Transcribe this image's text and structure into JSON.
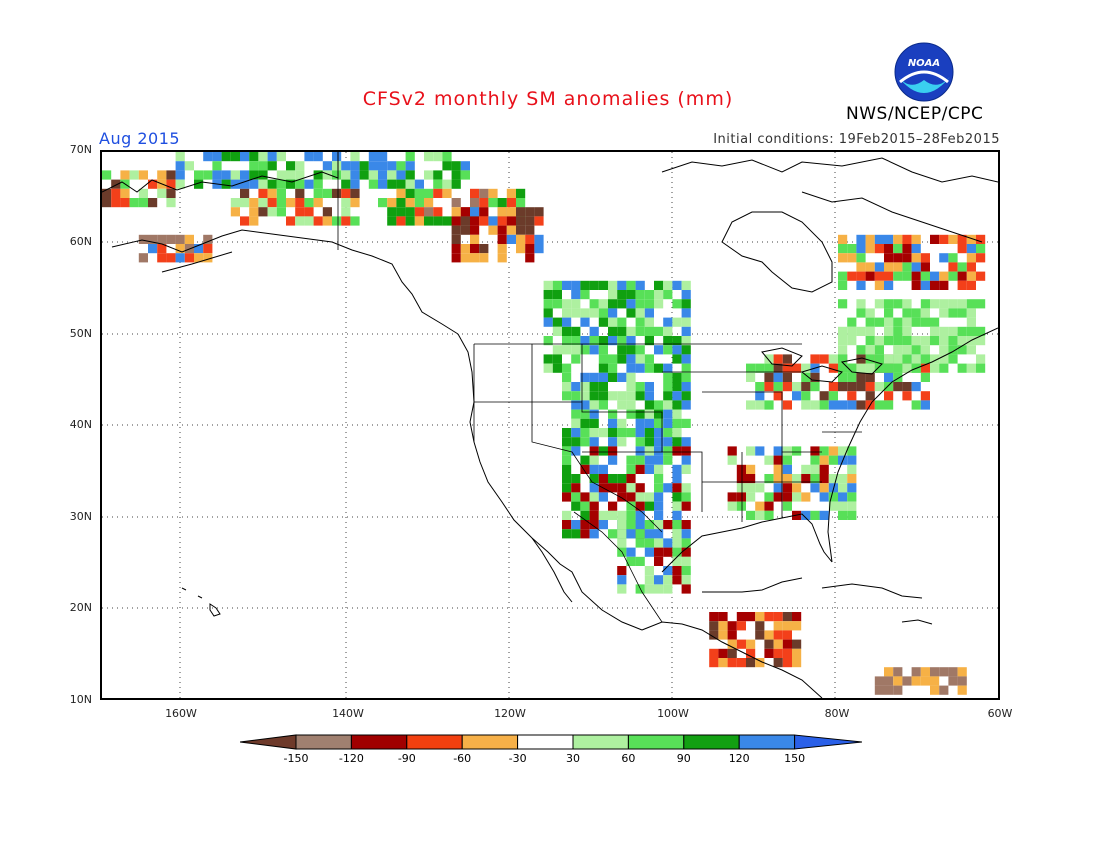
{
  "title": "CFSv2 monthly SM anomalies (mm)",
  "agency": "NWS/NCEP/CPC",
  "logo_text": "NOAA",
  "period": "Aug 2015",
  "initial_conditions": "Initial conditions: 19Feb2015–28Feb2015",
  "lat_labels": [
    "70N",
    "60N",
    "50N",
    "40N",
    "30N",
    "20N",
    "10N"
  ],
  "lon_labels": [
    "160W",
    "140W",
    "120W",
    "100W",
    "80W",
    "60W"
  ],
  "colorbar": {
    "labels": [
      "-150",
      "-120",
      "-90",
      "-60",
      "-30",
      "30",
      "60",
      "90",
      "120",
      "150"
    ],
    "colors": [
      "#6e3a2a",
      "#a08070",
      "#a00000",
      "#f24010",
      "#f6b048",
      "#ffffff",
      "#aef0a0",
      "#58e058",
      "#12a012",
      "#3a88e8",
      "#2a60e8"
    ]
  },
  "colors": {
    "title": "#e8101a",
    "period": "#1f4fe0",
    "brown_dark": "#6b3b2a",
    "brown_light": "#a07866",
    "red_dark": "#a50000",
    "red": "#f3401a",
    "orange": "#f6b146",
    "light_green": "#aef0a0",
    "green": "#58e058",
    "dark_green": "#10a010",
    "blue": "#3a88e8"
  }
}
